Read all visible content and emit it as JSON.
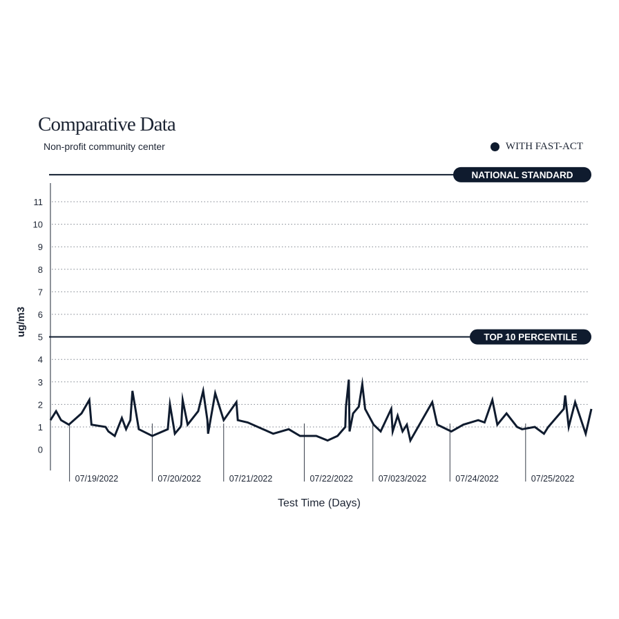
{
  "chart_data": {
    "type": "line",
    "title": "Comparative Data",
    "subtitle": "Non-profit community center",
    "xlabel": "Test Time (Days)",
    "ylabel": "ug/m3",
    "legend": {
      "label": "WITH FAST-ACT",
      "placement": "top-right"
    },
    "ylim": [
      0,
      12
    ],
    "yticks": [
      0,
      1,
      2,
      3,
      4,
      5,
      6,
      7,
      8,
      9,
      10,
      11
    ],
    "xlim": [
      0,
      7.65
    ],
    "grid": true,
    "reference_lines": [
      {
        "label": "NATIONAL STANDARD",
        "value": 12.2
      },
      {
        "label": "TOP 10 PERCENTILE",
        "value": 5
      }
    ],
    "day_markers": [
      {
        "label": "07/19/2022",
        "x": 0.27
      },
      {
        "label": "07/20/2022",
        "x": 1.44
      },
      {
        "label": "07/21/2022",
        "x": 2.45
      },
      {
        "label": "07/22/2022",
        "x": 3.59
      },
      {
        "label": "07/023/2022",
        "x": 4.56
      },
      {
        "label": "07/24/2022",
        "x": 5.65
      },
      {
        "label": "07/25/2022",
        "x": 6.72
      }
    ],
    "series": [
      {
        "color": "#0f1b2e",
        "x": [
          0,
          0.08,
          0.15,
          0.26,
          0.44,
          0.55,
          0.58,
          0.78,
          0.82,
          0.91,
          1.01,
          1.07,
          1.13,
          1.16,
          1.25,
          1.44,
          1.66,
          1.69,
          1.76,
          1.84,
          1.85,
          1.87,
          1.94,
          2.04,
          2.09,
          2.16,
          2.22,
          2.23,
          2.33,
          2.45,
          2.63,
          2.65,
          2.79,
          3.15,
          3.37,
          3.53,
          3.76,
          3.92,
          4.06,
          4.17,
          4.18,
          4.22,
          4.23,
          4.28,
          4.36,
          4.41,
          4.45,
          4.57,
          4.67,
          4.82,
          4.84,
          4.91,
          4.98,
          5.04,
          5.09,
          5.4,
          5.47,
          5.67,
          5.84,
          6.05,
          6.14,
          6.25,
          6.32,
          6.45,
          6.6,
          6.67,
          6.85,
          6.98,
          7.04,
          7.26,
          7.28,
          7.33,
          7.42,
          7.57,
          7.65
        ],
        "values": [
          1.3,
          1.7,
          1.3,
          1.1,
          1.6,
          2.2,
          1.1,
          1.0,
          0.8,
          0.6,
          1.4,
          0.9,
          1.3,
          2.6,
          0.9,
          0.6,
          0.9,
          2.0,
          0.7,
          1.0,
          1.1,
          2.2,
          1.1,
          1.5,
          1.7,
          2.6,
          1.3,
          0.7,
          2.5,
          1.3,
          2.1,
          1.3,
          1.2,
          0.7,
          0.9,
          0.6,
          0.6,
          0.4,
          0.6,
          1.0,
          1.9,
          3.1,
          0.8,
          1.6,
          1.9,
          2.9,
          1.8,
          1.1,
          0.8,
          1.8,
          0.8,
          1.5,
          0.8,
          1.1,
          0.4,
          2.1,
          1.1,
          0.8,
          1.1,
          1.3,
          1.2,
          2.2,
          1.1,
          1.6,
          1.0,
          0.9,
          1.0,
          0.7,
          1.0,
          1.8,
          2.4,
          1.0,
          2.1,
          0.7,
          1.8
        ]
      }
    ]
  }
}
